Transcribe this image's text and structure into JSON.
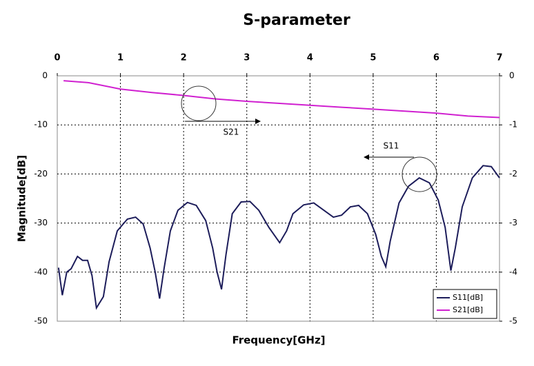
{
  "chart_data": {
    "type": "line",
    "title": "S-parameter",
    "x_label": "Frequency[GHz]",
    "y_label": "Magnitude[dB]",
    "xlim": [
      0,
      7
    ],
    "xticks": [
      0,
      1,
      2,
      3,
      4,
      5,
      6,
      7
    ],
    "x_axis_position": "top",
    "ylim": [
      -50,
      0
    ],
    "yticks": [
      0,
      -10,
      -20,
      -30,
      -40,
      -50
    ],
    "y2lim": [
      -5,
      0
    ],
    "y2ticks": [
      0,
      -1,
      -2,
      -3,
      -4,
      -5
    ],
    "grid": true,
    "legend": "lower right",
    "annotations": [
      "S21",
      "S11"
    ],
    "series": [
      {
        "name": "S11[dB]",
        "color": "#1c1c5a",
        "x": [
          0.02,
          0.08,
          0.15,
          0.22,
          0.32,
          0.4,
          0.48,
          0.55,
          0.62,
          0.73,
          0.82,
          0.95,
          1.11,
          1.24,
          1.36,
          1.47,
          1.55,
          1.62,
          1.69,
          1.79,
          1.91,
          2.06,
          2.2,
          2.35,
          2.46,
          2.53,
          2.6,
          2.67,
          2.77,
          2.91,
          3.05,
          3.19,
          3.35,
          3.52,
          3.63,
          3.73,
          3.9,
          4.06,
          4.22,
          4.37,
          4.5,
          4.64,
          4.77,
          4.91,
          5.04,
          5.13,
          5.2,
          5.27,
          5.41,
          5.56,
          5.73,
          5.89,
          6.03,
          6.14,
          6.19,
          6.23,
          6.3,
          6.41,
          6.57,
          6.74,
          6.87,
          7
        ],
        "values": [
          -39.1,
          -44.7,
          -40,
          -39.3,
          -36.8,
          -37.6,
          -37.6,
          -40.7,
          -47.3,
          -45,
          -37.9,
          -31.6,
          -29.2,
          -28.8,
          -30.2,
          -35.1,
          -40,
          -45.4,
          -39.3,
          -31.6,
          -27.4,
          -25.8,
          -26.4,
          -29.5,
          -35.1,
          -40,
          -43.5,
          -36.5,
          -28.1,
          -25.7,
          -25.6,
          -27.4,
          -30.9,
          -34,
          -31.6,
          -28.1,
          -26.3,
          -25.9,
          -27.4,
          -28.8,
          -28.4,
          -26.7,
          -26.4,
          -28.1,
          -32.3,
          -36.8,
          -38.9,
          -33.7,
          -25.9,
          -22.5,
          -20.8,
          -21.8,
          -25.3,
          -30.9,
          -35.8,
          -39.7,
          -35.1,
          -26.7,
          -20.8,
          -18.3,
          -18.5,
          -20.8
        ]
      },
      {
        "name": "S21[dB]",
        "color": "#d020d0",
        "axis": "y2",
        "x": [
          0.1,
          0.5,
          1,
          1.5,
          2,
          2.5,
          3,
          3.5,
          4,
          4.5,
          5,
          5.5,
          6,
          6.5,
          7
        ],
        "values": [
          -0.1,
          -0.14,
          -0.27,
          -0.34,
          -0.4,
          -0.47,
          -0.52,
          -0.56,
          -0.6,
          -0.64,
          -0.68,
          -0.72,
          -0.76,
          -0.82,
          -0.85
        ]
      }
    ]
  }
}
